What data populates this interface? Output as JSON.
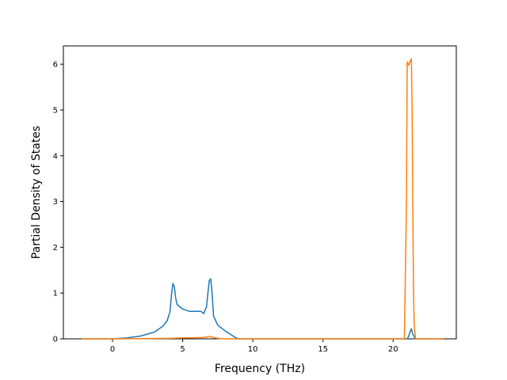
{
  "chart_data": {
    "type": "line",
    "title": "",
    "xlabel": "Frequency (THz)",
    "ylabel": "Partial Density of States",
    "xlim": [
      -3.5,
      24.5
    ],
    "ylim": [
      0,
      6.4
    ],
    "xticks": [
      0,
      5,
      10,
      15,
      20
    ],
    "yticks": [
      0,
      1,
      2,
      3,
      4,
      5,
      6
    ],
    "grid": false,
    "legend": "none",
    "series": [
      {
        "color": "#1f77b4",
        "x": [
          -2.2,
          0,
          1.0,
          2.0,
          3.0,
          3.6,
          3.9,
          4.1,
          4.2,
          4.3,
          4.4,
          4.5,
          4.6,
          5.0,
          5.5,
          6.0,
          6.3,
          6.5,
          6.7,
          6.8,
          6.9,
          7.0,
          7.1,
          7.2,
          7.5,
          8.0,
          8.5,
          8.8,
          9.0,
          10.0,
          15.0,
          20.0,
          20.8,
          21.0,
          21.1,
          21.2,
          21.3,
          21.4,
          21.6,
          22.0,
          23.6
        ],
        "y": [
          0,
          0,
          0.02,
          0.06,
          0.15,
          0.28,
          0.4,
          0.6,
          0.95,
          1.21,
          1.15,
          0.9,
          0.75,
          0.65,
          0.6,
          0.6,
          0.6,
          0.55,
          0.7,
          1.0,
          1.28,
          1.31,
          1.0,
          0.5,
          0.3,
          0.18,
          0.08,
          0.02,
          0,
          0,
          0,
          0,
          0,
          0,
          0.05,
          0.15,
          0.22,
          0.1,
          0,
          0,
          0
        ]
      },
      {
        "color": "#ff7f0e",
        "x": [
          -2.2,
          0,
          4.0,
          5.0,
          6.5,
          6.9,
          7.0,
          7.2,
          7.5,
          8.0,
          10.0,
          15.0,
          20.0,
          20.8,
          20.95,
          21.0,
          21.1,
          21.2,
          21.3,
          21.35,
          21.45,
          21.5,
          21.6,
          22.0,
          23.6
        ],
        "y": [
          0,
          0,
          0.01,
          0.02,
          0.03,
          0.05,
          0.05,
          0.03,
          0.01,
          0,
          0,
          0,
          0,
          0,
          3.0,
          6.05,
          5.98,
          6.05,
          6.12,
          5.0,
          1.0,
          0.3,
          0,
          0,
          0
        ]
      }
    ]
  }
}
